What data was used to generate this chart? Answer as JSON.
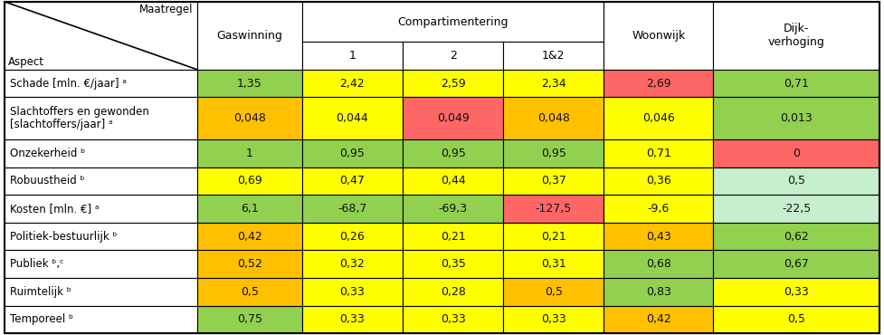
{
  "rows": [
    "Schade [mln. €/jaar] ᵃ",
    "Slachtoffers en gewonden\n[slachtoffers/jaar] ᵃ",
    "Onzekerheid ᵇ",
    "Robuustheid ᵇ",
    "Kosten [mln. €] ᵃ",
    "Politiek-bestuurlijk ᵇ",
    "Publiek ᵇ,ᶜ",
    "Ruimtelijk ᵇ",
    "Temporeel ᵇ"
  ],
  "values": [
    [
      "1,35",
      "2,42",
      "2,59",
      "2,34",
      "2,69",
      "0,71"
    ],
    [
      "0,048",
      "0,044",
      "0,049",
      "0,048",
      "0,046",
      "0,013"
    ],
    [
      "1",
      "0,95",
      "0,95",
      "0,95",
      "0,71",
      "0"
    ],
    [
      "0,69",
      "0,47",
      "0,44",
      "0,37",
      "0,36",
      "0,5"
    ],
    [
      "6,1",
      "-68,7",
      "-69,3",
      "-127,5",
      "-9,6",
      "-22,5"
    ],
    [
      "0,42",
      "0,26",
      "0,21",
      "0,21",
      "0,43",
      "0,62"
    ],
    [
      "0,52",
      "0,32",
      "0,35",
      "0,31",
      "0,68",
      "0,67"
    ],
    [
      "0,5",
      "0,33",
      "0,28",
      "0,5",
      "0,83",
      "0,33"
    ],
    [
      "0,75",
      "0,33",
      "0,33",
      "0,33",
      "0,42",
      "0,5"
    ]
  ],
  "colors": [
    [
      "#92d050",
      "#ffff00",
      "#ffff00",
      "#ffff00",
      "#ff6666",
      "#92d050"
    ],
    [
      "#ffc000",
      "#ffff00",
      "#ff6666",
      "#ffc000",
      "#ffff00",
      "#92d050"
    ],
    [
      "#92d050",
      "#92d050",
      "#92d050",
      "#92d050",
      "#ffff00",
      "#ff6666"
    ],
    [
      "#ffff00",
      "#ffff00",
      "#ffff00",
      "#ffff00",
      "#ffff00",
      "#c6efce"
    ],
    [
      "#92d050",
      "#92d050",
      "#92d050",
      "#ff6666",
      "#ffff00",
      "#c6efce"
    ],
    [
      "#ffc000",
      "#ffff00",
      "#ffff00",
      "#ffff00",
      "#ffc000",
      "#92d050"
    ],
    [
      "#ffc000",
      "#ffff00",
      "#ffff00",
      "#ffff00",
      "#92d050",
      "#92d050"
    ],
    [
      "#ffc000",
      "#ffff00",
      "#ffff00",
      "#ffc000",
      "#92d050",
      "#ffff00"
    ],
    [
      "#92d050",
      "#ffff00",
      "#ffff00",
      "#ffff00",
      "#ffc000",
      "#ffff00"
    ]
  ],
  "col_props": [
    0.22,
    0.12,
    0.115,
    0.115,
    0.115,
    0.125,
    0.19
  ],
  "row_props": [
    0.142,
    0.098,
    0.098,
    0.15,
    0.098,
    0.098,
    0.098,
    0.098,
    0.098,
    0.098,
    0.098
  ],
  "data_fontsize": 9.0,
  "label_fontsize": 8.5,
  "header_fontsize": 9.0
}
